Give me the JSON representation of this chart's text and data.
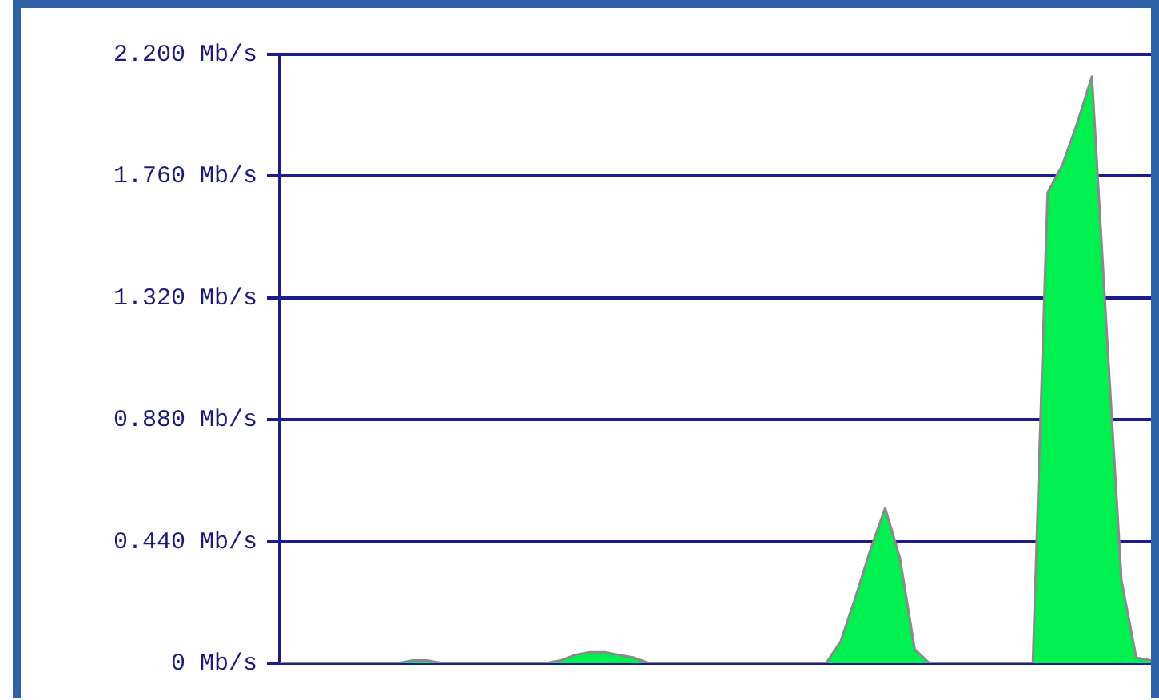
{
  "chart_data": {
    "type": "area",
    "categories": [
      null,
      null,
      null,
      null,
      null,
      null,
      null,
      null,
      null,
      null,
      null,
      null,
      null,
      null,
      null,
      null,
      null,
      null,
      null,
      null,
      null,
      null,
      null,
      null,
      null,
      null,
      null,
      null,
      null,
      null,
      null,
      null,
      null,
      null,
      null,
      null,
      null,
      null,
      null,
      null,
      null,
      null,
      null,
      null,
      null,
      null,
      null,
      null,
      null,
      null,
      null,
      null,
      null,
      null,
      null,
      null,
      null,
      null,
      null,
      null
    ],
    "series": [
      {
        "color": "#00f050",
        "values": [
          0,
          0,
          0,
          0,
          0,
          0,
          0,
          0,
          0,
          0.01,
          0.01,
          0,
          0,
          0,
          0,
          0,
          0,
          0,
          0,
          0.01,
          0.03,
          0.04,
          0.04,
          0.03,
          0.02,
          0,
          0,
          0,
          0,
          0,
          0,
          0,
          0,
          0,
          0,
          0,
          0,
          0,
          0.08,
          0.24,
          0.41,
          0.56,
          0.38,
          0.05,
          0,
          0,
          0,
          0,
          0,
          0,
          0,
          0,
          1.7,
          1.8,
          1.95,
          2.12,
          1.2,
          0.3,
          0.02,
          0.01
        ]
      }
    ],
    "ylim": [
      0,
      2.2
    ],
    "yticks": [
      {
        "value": 0,
        "label": "0 Mb/s"
      },
      {
        "value": 0.44,
        "label": "0.440 Mb/s"
      },
      {
        "value": 0.88,
        "label": "0.880 Mb/s"
      },
      {
        "value": 1.32,
        "label": "1.320 Mb/s"
      },
      {
        "value": 1.76,
        "label": "1.760 Mb/s"
      },
      {
        "value": 2.2,
        "label": "2.200 Mb/s"
      }
    ],
    "grid": "y",
    "tick_labels": "y",
    "legend": false
  }
}
